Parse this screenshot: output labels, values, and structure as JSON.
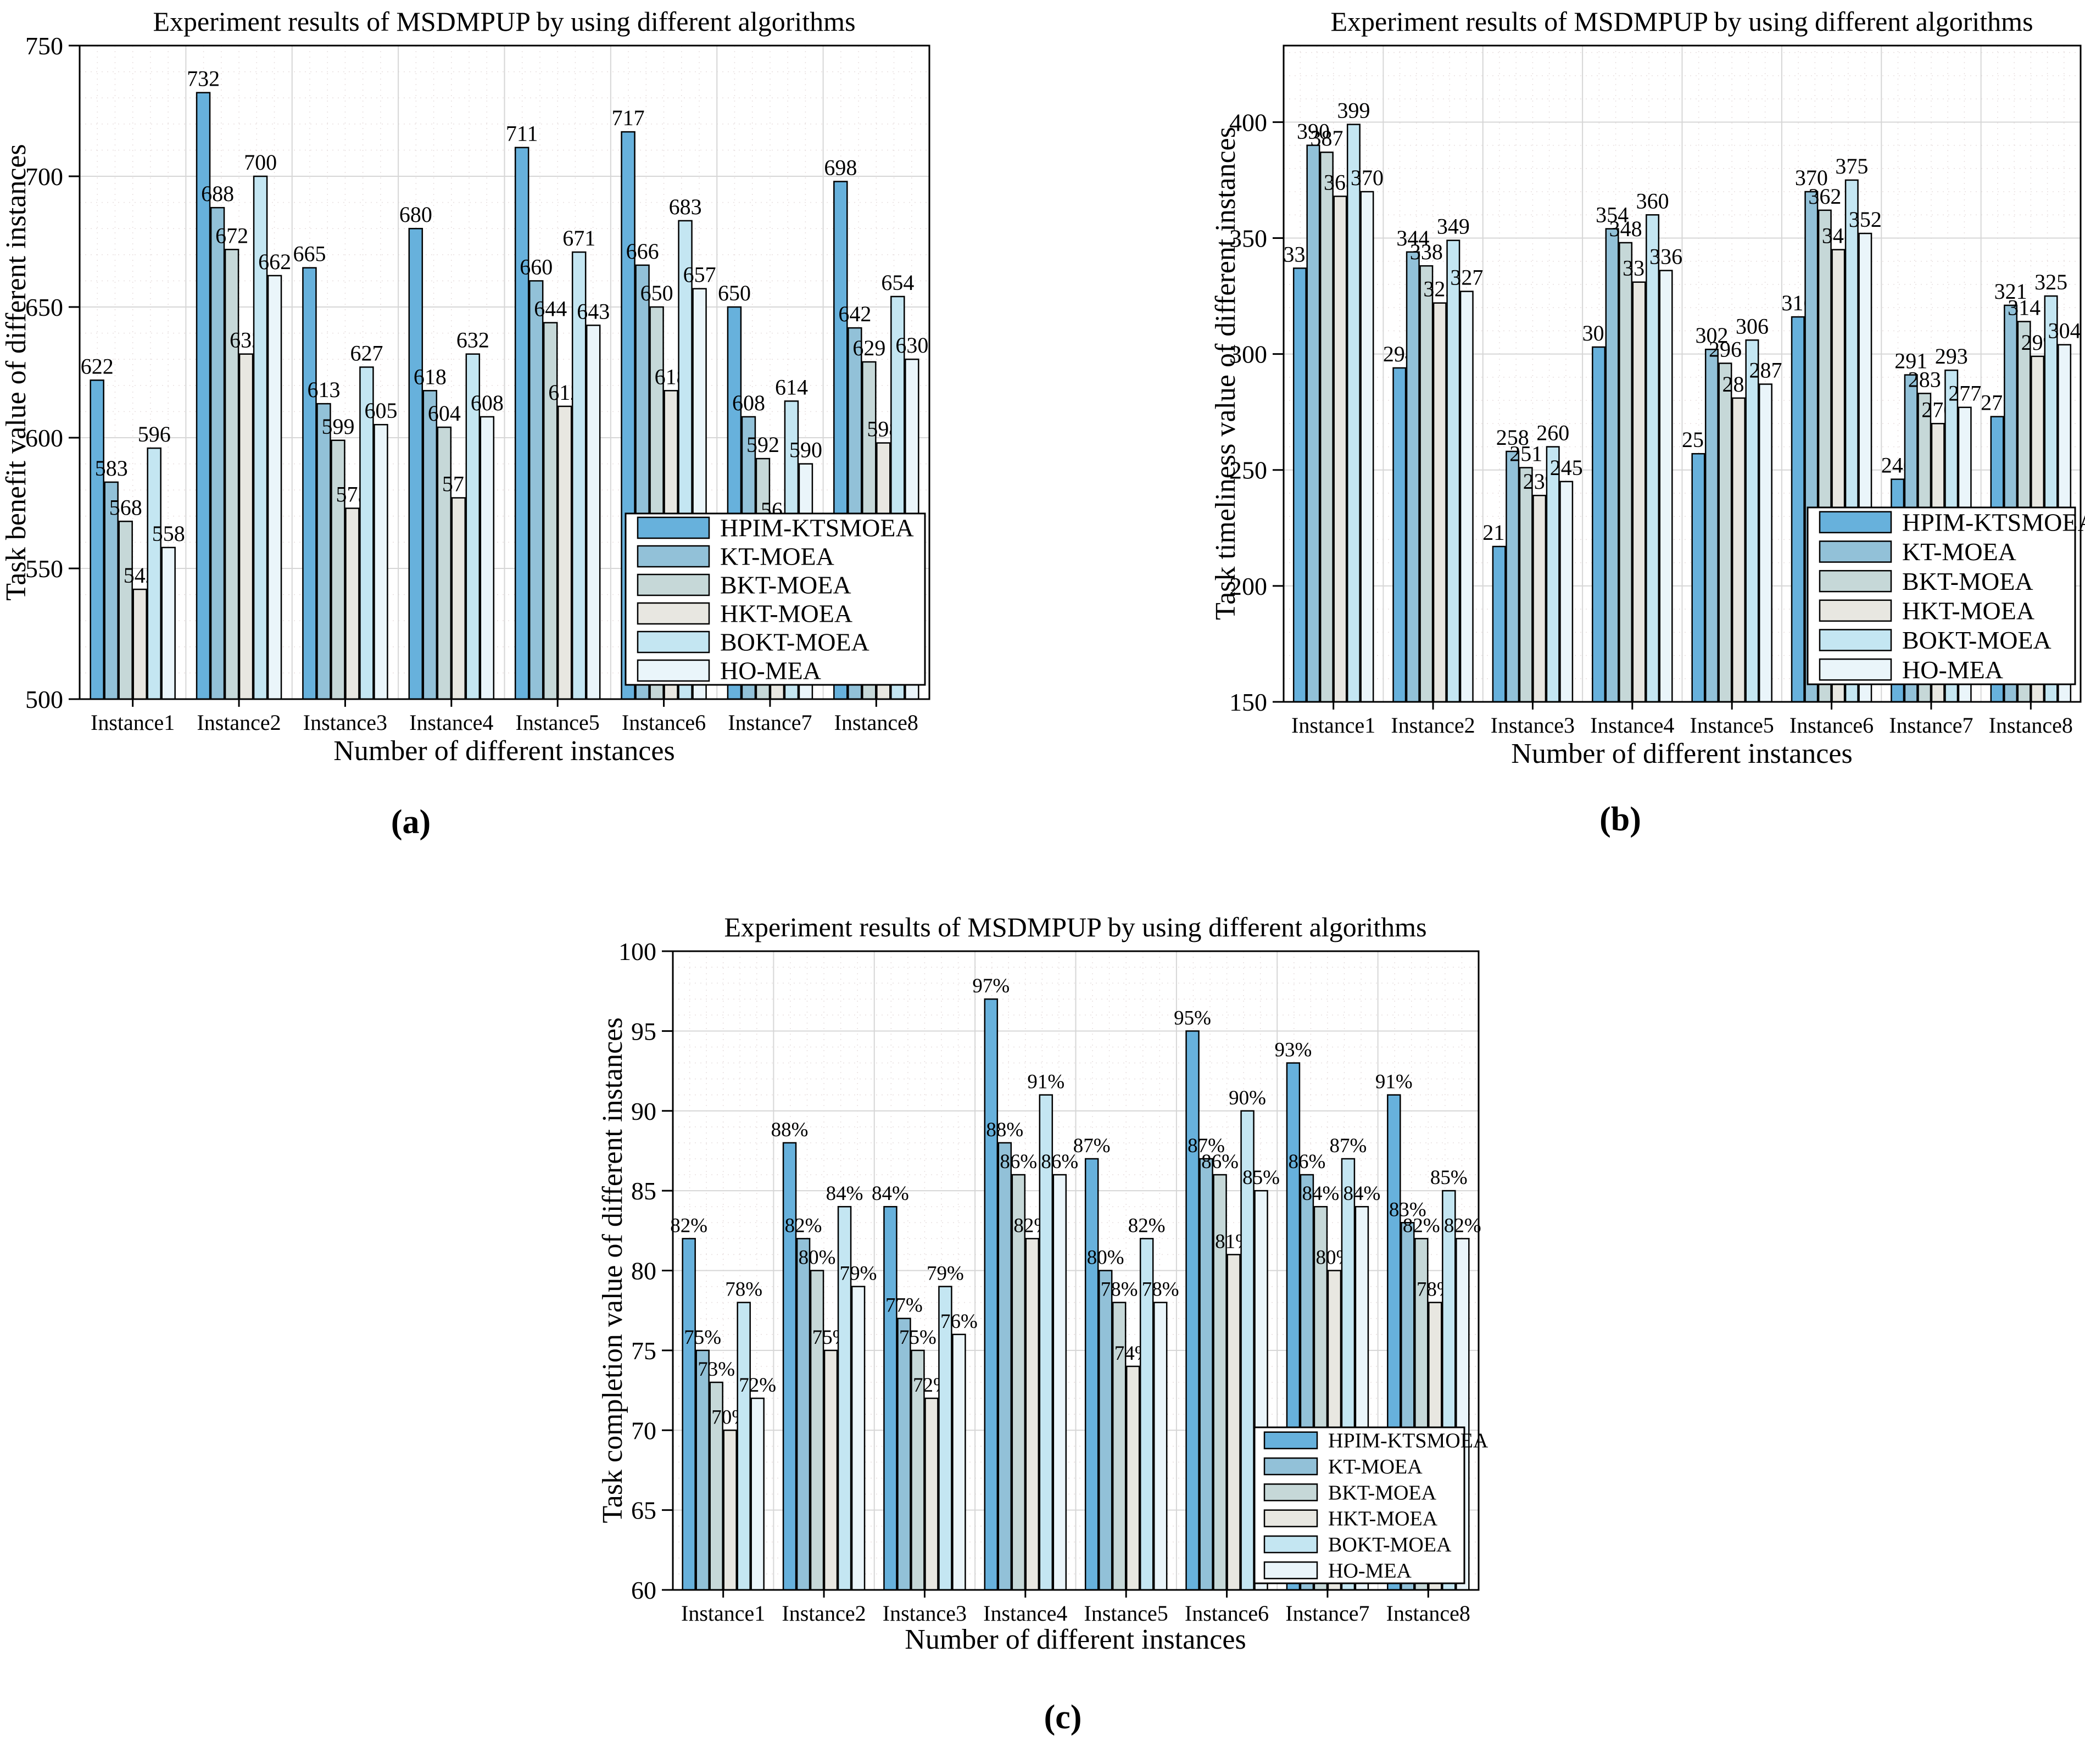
{
  "figure_captions": {
    "a": "(a)",
    "b": "(b)",
    "c": "(c)"
  },
  "legend_items": [
    "HPIM-KTSMOEA",
    "KT-MOEA",
    "BKT-MOEA",
    "HKT-MOEA",
    "BOKT-MOEA",
    "HO-MEA"
  ],
  "series_colors": {
    "HPIM-KTSMOEA": "#67b1dc",
    "KT-MOEA": "#92c1d8",
    "BKT-MOEA": "#c6d8d8",
    "HKT-MOEA": "#e8e7e1",
    "BOKT-MOEA": "#c4e6f2",
    "HO-MEA": "#eaf5fa"
  },
  "grid_colors": {
    "major": "#d6d6d6",
    "minor": "#e8dfdf"
  },
  "chart_data": [
    {
      "type": "bar",
      "title": "Experiment results of MSDMPUP by using different algorithms",
      "xlabel": "Number of different instances",
      "ylabel": "Task benefit value of different instances",
      "caption": "(a)",
      "categories": [
        "Instance1",
        "Instance2",
        "Instance3",
        "Instance4",
        "Instance5",
        "Instance6",
        "Instance7",
        "Instance8"
      ],
      "ylim": [
        500,
        750
      ],
      "yticks": [
        500,
        550,
        600,
        650,
        700,
        750
      ],
      "grid": true,
      "legend_position": "bottom-right",
      "value_suffix": "",
      "series": [
        {
          "name": "HPIM-KTSMOEA",
          "color": "#67b1dc",
          "values": [
            622,
            732,
            665,
            680,
            711,
            717,
            650,
            698
          ]
        },
        {
          "name": "KT-MOEA",
          "color": "#92c1d8",
          "values": [
            583,
            688,
            613,
            618,
            660,
            666,
            608,
            642
          ]
        },
        {
          "name": "BKT-MOEA",
          "color": "#c6d8d8",
          "values": [
            568,
            672,
            599,
            604,
            644,
            650,
            592,
            629
          ]
        },
        {
          "name": "HKT-MOEA",
          "color": "#e8e7e1",
          "values": [
            542,
            632,
            573,
            577,
            612,
            618,
            567,
            598
          ]
        },
        {
          "name": "BOKT-MOEA",
          "color": "#c4e6f2",
          "values": [
            596,
            700,
            627,
            632,
            671,
            683,
            614,
            654
          ]
        },
        {
          "name": "HO-MEA",
          "color": "#eaf5fa",
          "values": [
            558,
            662,
            605,
            608,
            643,
            657,
            590,
            630
          ]
        }
      ]
    },
    {
      "type": "bar",
      "title": "Experiment results of MSDMPUP by using different algorithms",
      "xlabel": "Number of different instances",
      "ylabel": "Task timeliness value of different instances",
      "caption": "(b)",
      "categories": [
        "Instance1",
        "Instance2",
        "Instance3",
        "Instance4",
        "Instance5",
        "Instance6",
        "Instance7",
        "Instance8"
      ],
      "ylim": [
        150,
        433
      ],
      "yticks": [
        150,
        200,
        250,
        300,
        350,
        400
      ],
      "grid": true,
      "legend_position": "bottom-right",
      "value_suffix": "",
      "series": [
        {
          "name": "HPIM-KTSMOEA",
          "color": "#67b1dc",
          "values": [
            337,
            294,
            217,
            303,
            257,
            316,
            246,
            273
          ]
        },
        {
          "name": "KT-MOEA",
          "color": "#92c1d8",
          "values": [
            390,
            344,
            258,
            354,
            302,
            370,
            291,
            321
          ]
        },
        {
          "name": "BKT-MOEA",
          "color": "#c6d8d8",
          "values": [
            387,
            338,
            251,
            348,
            296,
            362,
            283,
            314
          ]
        },
        {
          "name": "HKT-MOEA",
          "color": "#e8e7e1",
          "values": [
            368,
            322,
            239,
            331,
            281,
            345,
            270,
            299
          ]
        },
        {
          "name": "BOKT-MOEA",
          "color": "#c4e6f2",
          "values": [
            399,
            349,
            260,
            360,
            306,
            375,
            293,
            325
          ]
        },
        {
          "name": "HO-MEA",
          "color": "#eaf5fa",
          "values": [
            370,
            327,
            245,
            336,
            287,
            352,
            277,
            304
          ]
        }
      ]
    },
    {
      "type": "bar",
      "title": "Experiment results of MSDMPUP by using different algorithms",
      "xlabel": "Number of different instances",
      "ylabel": "Task completion value of different instances",
      "caption": "(c)",
      "categories": [
        "Instance1",
        "Instance2",
        "Instance3",
        "Instance4",
        "Instance5",
        "Instance6",
        "Instance7",
        "Instance8"
      ],
      "ylim": [
        60,
        100
      ],
      "yticks": [
        60,
        65,
        70,
        75,
        80,
        85,
        90,
        95,
        100
      ],
      "grid": true,
      "legend_position": "bottom-right",
      "value_suffix": "%",
      "series": [
        {
          "name": "HPIM-KTSMOEA",
          "color": "#67b1dc",
          "values": [
            82,
            88,
            84,
            97,
            87,
            95,
            93,
            91
          ]
        },
        {
          "name": "KT-MOEA",
          "color": "#92c1d8",
          "values": [
            75,
            82,
            77,
            88,
            80,
            87,
            86,
            83
          ]
        },
        {
          "name": "BKT-MOEA",
          "color": "#c6d8d8",
          "values": [
            73,
            80,
            75,
            86,
            78,
            86,
            84,
            82
          ]
        },
        {
          "name": "HKT-MOEA",
          "color": "#e8e7e1",
          "values": [
            70,
            75,
            72,
            82,
            74,
            81,
            80,
            78
          ]
        },
        {
          "name": "BOKT-MOEA",
          "color": "#c4e6f2",
          "values": [
            78,
            84,
            79,
            91,
            82,
            90,
            87,
            85
          ]
        },
        {
          "name": "HO-MEA",
          "color": "#eaf5fa",
          "values": [
            72,
            79,
            76,
            86,
            78,
            85,
            84,
            82
          ]
        }
      ]
    }
  ]
}
